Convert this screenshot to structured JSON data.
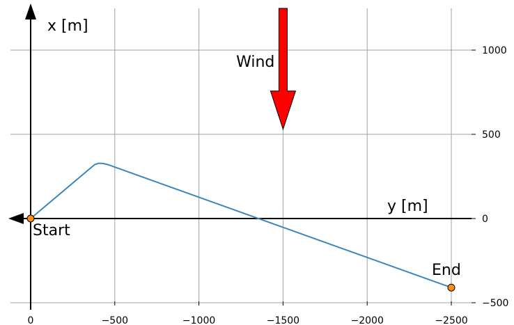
{
  "chart_data": {
    "type": "line",
    "xlabel": "y [m]",
    "ylabel": "x [m]",
    "xlim": [
      0,
      -2500
    ],
    "ylim": [
      -500,
      1250
    ],
    "x_ticks": [
      0,
      -500,
      -1000,
      -1500,
      -2000,
      -2500
    ],
    "x_tick_labels": [
      "0",
      "−500",
      "−1000",
      "−1500",
      "−2000",
      "−2500"
    ],
    "y_ticks": [
      -500,
      0,
      500,
      1000
    ],
    "y_tick_labels": [
      "−500",
      "0",
      "500",
      "1000"
    ],
    "grid": true,
    "series": [
      {
        "x": [
          0,
          -380,
          -405,
          -430,
          -460,
          -2500
        ],
        "y": [
          0,
          320,
          328,
          327,
          320,
          -410
        ]
      }
    ],
    "points": [
      {
        "label": "Start",
        "x": 0,
        "y": 0
      },
      {
        "label": "End",
        "x": -2500,
        "y": -410
      }
    ],
    "wind": {
      "label": "Wind",
      "x": -1500,
      "y_from": 1250,
      "y_to": 530
    },
    "colors": {
      "line": "#3a86bd",
      "grid": "#a0a0a0",
      "wind_fill": "#ff0000",
      "marker_fill": "#ff8c1a"
    }
  }
}
